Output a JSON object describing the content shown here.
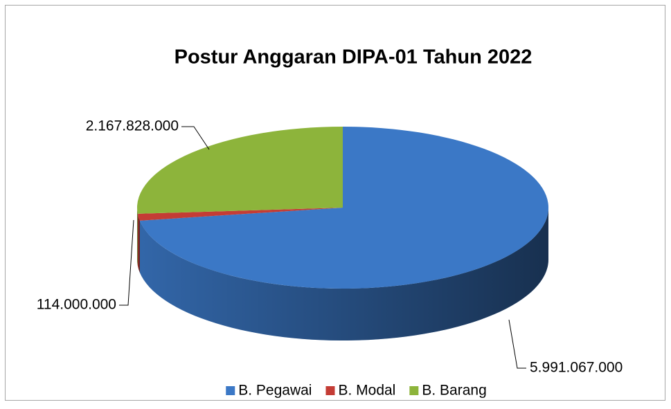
{
  "chart_data": {
    "type": "pie3d",
    "title": "Postur Anggaran DIPA-01 Tahun 2022",
    "categories": [
      "B. Pegawai",
      "B. Modal",
      "B. Barang"
    ],
    "values": [
      5991067000,
      114000000,
      2167828000
    ],
    "value_labels": [
      "5.991.067.000",
      "114.000.000",
      "2.167.828.000"
    ],
    "colors": [
      "#3b78c6",
      "#c43c35",
      "#8db43b"
    ],
    "legend": "bottom"
  }
}
